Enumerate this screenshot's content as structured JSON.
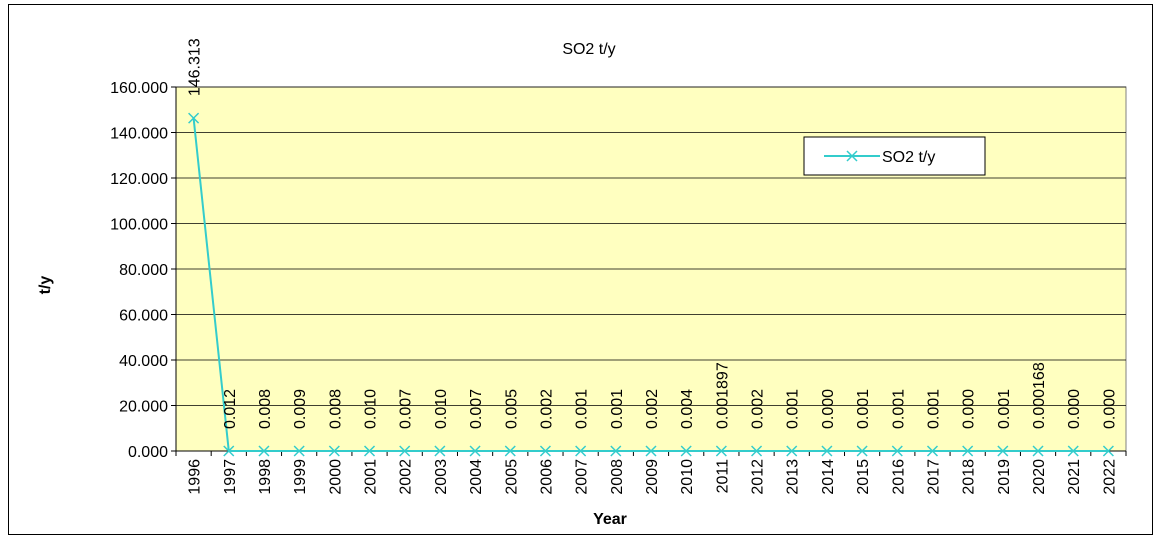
{
  "chart_data": {
    "type": "line",
    "title": "SO2  t/y",
    "x_label": "Year",
    "y_label": "t/y",
    "categories": [
      "1996",
      "1997",
      "1998",
      "1999",
      "2000",
      "2001",
      "2002",
      "2003",
      "2004",
      "2005",
      "2006",
      "2007",
      "2008",
      "2009",
      "2010",
      "2011",
      "2012",
      "2013",
      "2014",
      "2015",
      "2016",
      "2017",
      "2018",
      "2019",
      "2020",
      "2021",
      "2022"
    ],
    "series": [
      {
        "name": "SO2  t/y",
        "color": "#33cccc",
        "values": [
          146.313,
          0.012,
          0.008,
          0.009,
          0.008,
          0.01,
          0.007,
          0.01,
          0.007,
          0.005,
          0.002,
          0.001,
          0.001,
          0.002,
          0.004,
          0.001897,
          0.002,
          0.001,
          0.0,
          0.001,
          0.001,
          0.001,
          0.0,
          0.001,
          0.000168,
          0.0,
          0.0
        ],
        "value_labels": [
          "146.313",
          "0.012",
          "0.008",
          "0.009",
          "0.008",
          "0.010",
          "0.007",
          "0.010",
          "0.007",
          "0.005",
          "0.002",
          "0.001",
          "0.001",
          "0.002",
          "0.004",
          "0.001897",
          "0.002",
          "0.001",
          "0.000",
          "0.001",
          "0.001",
          "0.001",
          "0.000",
          "0.001",
          "0.000168",
          "0.000",
          "0.000"
        ]
      }
    ],
    "ylim": [
      0,
      160
    ],
    "yticks": [
      {
        "value": 0,
        "label": "0.000"
      },
      {
        "value": 20,
        "label": "20.000"
      },
      {
        "value": 40,
        "label": "40.000"
      },
      {
        "value": 60,
        "label": "60.000"
      },
      {
        "value": 80,
        "label": "80.000"
      },
      {
        "value": 100,
        "label": "100.000"
      },
      {
        "value": 120,
        "label": "120.000"
      },
      {
        "value": 140,
        "label": "140.000"
      },
      {
        "value": 160,
        "label": "160.000"
      }
    ],
    "grid": true,
    "plot_background": "#ffffc0",
    "legend": "top-right"
  }
}
